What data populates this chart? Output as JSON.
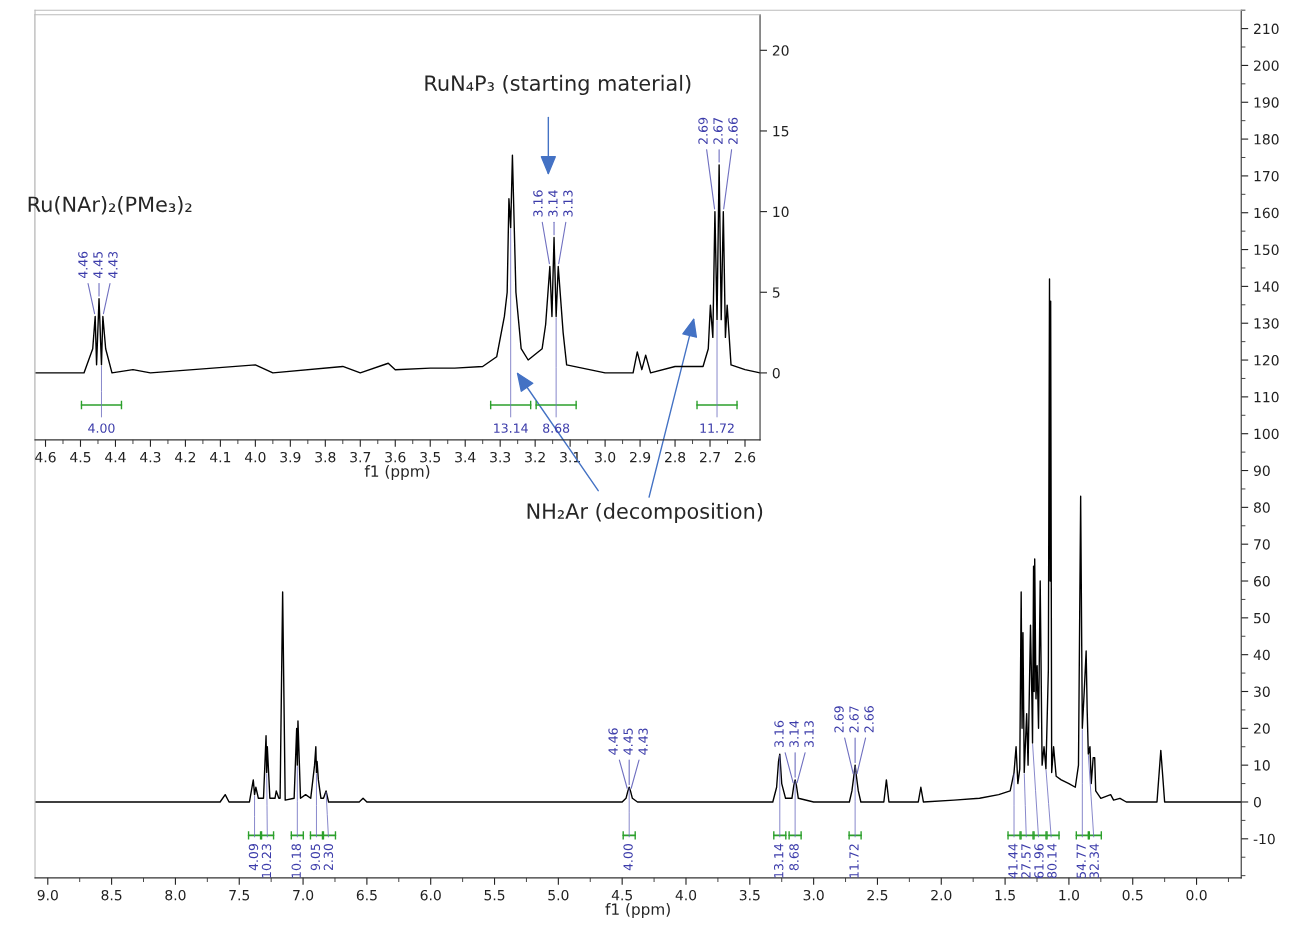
{
  "chart_data": [
    {
      "type": "line",
      "xlabel": "f1 (ppm)",
      "grid": false,
      "legend": false,
      "marker": "none",
      "line_style": "solid",
      "xlim": [
        9.1,
        -0.35
      ],
      "ylim": [
        -20.6,
        215
      ],
      "xticks": [
        {
          "value": 9,
          "label": "9.0"
        },
        8.5,
        {
          "value": 8,
          "label": "8.0"
        },
        7.5,
        {
          "value": 7,
          "label": "7.0"
        },
        6.5,
        {
          "value": 6,
          "label": "6.0"
        },
        5.5,
        {
          "value": 5,
          "label": "5.0"
        },
        4.5,
        {
          "value": 4,
          "label": "4.0"
        },
        3.5,
        {
          "value": 3,
          "label": "3.0"
        },
        2.5,
        {
          "value": 2,
          "label": "2.0"
        },
        1.5,
        {
          "value": 1,
          "label": "1.0"
        },
        0.5,
        {
          "value": 0,
          "label": "0.0"
        }
      ],
      "yticks": [
        -10,
        0,
        10,
        20,
        30,
        40,
        50,
        60,
        70,
        80,
        90,
        100,
        110,
        120,
        130,
        140,
        150,
        160,
        170,
        180,
        190,
        200,
        210
      ],
      "series": [
        {
          "color": "#000000",
          "x": [
            9.1,
            7.65,
            7.61,
            7.58,
            7.42,
            7.39,
            7.38,
            7.37,
            7.35,
            7.31,
            7.29,
            7.285,
            7.28,
            7.26,
            7.22,
            7.21,
            7.19,
            7.18,
            7.16,
            7.14,
            7.07,
            7.05,
            7.045,
            7.04,
            7.02,
            6.98,
            6.94,
            6.91,
            6.9,
            6.895,
            6.89,
            6.88,
            6.86,
            6.84,
            6.82,
            6.8,
            6.56,
            6.53,
            6.5,
            4.5,
            4.47,
            4.455,
            4.445,
            4.435,
            4.42,
            4.38,
            3.32,
            3.29,
            3.275,
            3.265,
            3.25,
            3.22,
            3.17,
            3.155,
            3.145,
            3.135,
            3.12,
            3.0,
            2.72,
            2.7,
            2.685,
            2.675,
            2.665,
            2.65,
            2.63,
            2.45,
            2.43,
            2.41,
            2.18,
            2.16,
            2.14,
            1.9,
            1.7,
            1.55,
            1.46,
            1.43,
            1.414,
            1.4,
            1.385,
            1.374,
            1.367,
            1.36,
            1.35,
            1.331,
            1.32,
            1.301,
            1.29,
            1.285,
            1.277,
            1.272,
            1.268,
            1.258,
            1.249,
            1.238,
            1.225,
            1.21,
            1.195,
            1.18,
            1.161,
            1.152,
            1.147,
            1.143,
            1.135,
            1.12,
            1.1,
            1.06,
            1.0,
            0.95,
            0.925,
            0.908,
            0.895,
            0.88,
            0.865,
            0.857,
            0.848,
            0.835,
            0.825,
            0.81,
            0.798,
            0.79,
            0.75,
            0.673,
            0.65,
            0.6,
            0.55,
            0.31,
            0.28,
            0.25,
            -0.35
          ],
          "values": [
            0,
            0,
            2,
            0,
            0,
            6,
            2,
            4,
            1,
            1,
            18,
            8,
            15,
            1,
            1,
            3,
            1,
            1,
            57,
            0.5,
            1,
            20,
            10,
            22,
            1,
            2,
            1,
            10,
            15,
            8,
            11,
            6,
            1,
            1,
            3,
            0,
            0,
            1,
            0,
            0,
            1,
            3,
            4,
            3,
            1,
            0,
            0,
            4,
            11,
            13,
            5,
            1,
            1,
            4.5,
            6,
            4.5,
            1,
            0,
            0,
            3,
            7,
            10,
            7,
            3,
            0,
            0,
            6,
            0,
            0,
            4,
            0,
            0.5,
            1,
            2,
            3,
            8,
            15,
            5,
            9,
            57,
            20,
            46,
            8,
            24,
            10,
            48,
            28,
            16,
            64,
            30,
            66,
            28,
            37,
            20,
            60,
            10,
            15,
            9,
            36,
            142,
            60,
            136,
            8,
            15,
            7,
            6,
            5,
            4,
            10,
            83,
            20,
            30,
            41,
            25,
            13,
            15,
            5,
            12,
            12,
            3,
            1,
            2,
            0.5,
            1,
            0,
            0,
            14,
            0,
            0
          ]
        }
      ],
      "annotations": [
        {
          "text": "4.46",
          "x": 4.455,
          "y": 3
        },
        {
          "text": "4.45",
          "x": 4.445,
          "y": 4
        },
        {
          "text": "4.43",
          "x": 4.435,
          "y": 3
        },
        {
          "text": "3.16",
          "x": 3.155,
          "y": 4.5
        },
        {
          "text": "3.14",
          "x": 3.145,
          "y": 6
        },
        {
          "text": "3.13",
          "x": 3.135,
          "y": 4.5
        },
        {
          "text": "2.69",
          "x": 2.685,
          "y": 7
        },
        {
          "text": "2.67",
          "x": 2.675,
          "y": 10
        },
        {
          "text": "2.66",
          "x": 2.665,
          "y": 7
        },
        {
          "text": "4.09",
          "x": 7.38,
          "y": 2
        },
        {
          "text": "10.23",
          "x": 7.285,
          "y": 8
        },
        {
          "text": "10.18",
          "x": 7.045,
          "y": 10
        },
        {
          "text": "9.05",
          "x": 6.895,
          "y": 8
        },
        {
          "text": "2.30",
          "x": 6.82,
          "y": 3
        },
        {
          "text": "4.00",
          "x": 4.445,
          "y": 4
        },
        {
          "text": "13.14",
          "x": 3.265,
          "y": 13
        },
        {
          "text": "8.68",
          "x": 3.145,
          "y": 6
        },
        {
          "text": "11.72",
          "x": 2.675,
          "y": 10
        },
        {
          "text": "41.44",
          "x": 1.43,
          "y": 8
        },
        {
          "text": "27.57",
          "x": 1.35,
          "y": 8
        },
        {
          "text": "61.96",
          "x": 1.285,
          "y": 16
        },
        {
          "text": "80.14",
          "x": 1.18,
          "y": 9
        },
        {
          "text": "54.77",
          "x": 0.895,
          "y": 20
        },
        {
          "text": "32.34",
          "x": 0.848,
          "y": 13
        }
      ]
    },
    {
      "type": "line",
      "xlabel": "f1 (ppm)",
      "grid": false,
      "legend": false,
      "marker": "none",
      "line_style": "solid",
      "xlim": [
        4.63,
        2.557
      ],
      "ylim": [
        -4.15,
        22.2
      ],
      "xticks": [
        4.6,
        4.5,
        4.4,
        4.3,
        4.2,
        4.1,
        {
          "value": 4,
          "label": "4.0"
        },
        3.9,
        3.8,
        3.7,
        3.6,
        3.5,
        3.4,
        3.3,
        3.2,
        3.1,
        {
          "value": 3,
          "label": "3.0"
        },
        2.9,
        2.8,
        2.7,
        2.6
      ],
      "yticks": [
        0,
        5,
        10,
        15,
        20
      ],
      "series": [
        {
          "color": "#000000",
          "x": [
            4.63,
            4.49,
            4.465,
            4.458,
            4.454,
            4.447,
            4.44,
            4.436,
            4.428,
            4.41,
            4.35,
            4.3,
            4.0,
            3.95,
            3.75,
            3.7,
            3.62,
            3.6,
            3.5,
            3.43,
            3.35,
            3.31,
            3.288,
            3.28,
            3.275,
            3.27,
            3.265,
            3.255,
            3.24,
            3.22,
            3.18,
            3.17,
            3.158,
            3.152,
            3.146,
            3.14,
            3.134,
            3.12,
            3.11,
            3.0,
            2.92,
            2.908,
            2.895,
            2.884,
            2.87,
            2.8,
            2.72,
            2.705,
            2.699,
            2.692,
            2.686,
            2.68,
            2.674,
            2.668,
            2.662,
            2.656,
            2.651,
            2.64,
            2.6,
            2.557
          ],
          "values": [
            0,
            0,
            1.5,
            3.5,
            0.5,
            4.6,
            0.5,
            3.5,
            1.5,
            0,
            0.2,
            0,
            0.5,
            0,
            0.4,
            0,
            0.6,
            0.2,
            0.3,
            0.3,
            0.4,
            1,
            3.5,
            5,
            10.8,
            9,
            13.5,
            5,
            1.5,
            0.8,
            1.5,
            3,
            6.6,
            3.5,
            8.4,
            3.5,
            6.6,
            2.5,
            0.5,
            0,
            0,
            1.3,
            0.2,
            1.1,
            0,
            0.4,
            0.4,
            1.5,
            4.2,
            2.2,
            10,
            3.3,
            12.9,
            3.3,
            10,
            2.2,
            4.2,
            0.5,
            0.2,
            0
          ]
        }
      ],
      "annotations": [
        {
          "text": "4.46",
          "x": 4.458,
          "y": 3.5
        },
        {
          "text": "4.45",
          "x": 4.447,
          "y": 4.6
        },
        {
          "text": "4.43",
          "x": 4.436,
          "y": 3.5
        },
        {
          "text": "3.16",
          "x": 3.158,
          "y": 6.6
        },
        {
          "text": "3.14",
          "x": 3.146,
          "y": 8.4
        },
        {
          "text": "3.13",
          "x": 3.134,
          "y": 6.6
        },
        {
          "text": "2.69",
          "x": 2.686,
          "y": 10
        },
        {
          "text": "2.67",
          "x": 2.674,
          "y": 12.9
        },
        {
          "text": "2.66",
          "x": 2.662,
          "y": 10
        },
        {
          "text": "4.00",
          "x": 4.44,
          "y": 0.5
        },
        {
          "text": "13.14",
          "x": 3.27,
          "y": 9
        },
        {
          "text": "8.68",
          "x": 3.14,
          "y": 3.5
        },
        {
          "text": "11.72",
          "x": 2.68,
          "y": 3.3
        },
        "Ru(NAr)₂(PMe₃)₂",
        "RuN₄P₃ (starting material)",
        "NH₂Ar (decomposition)"
      ]
    }
  ]
}
